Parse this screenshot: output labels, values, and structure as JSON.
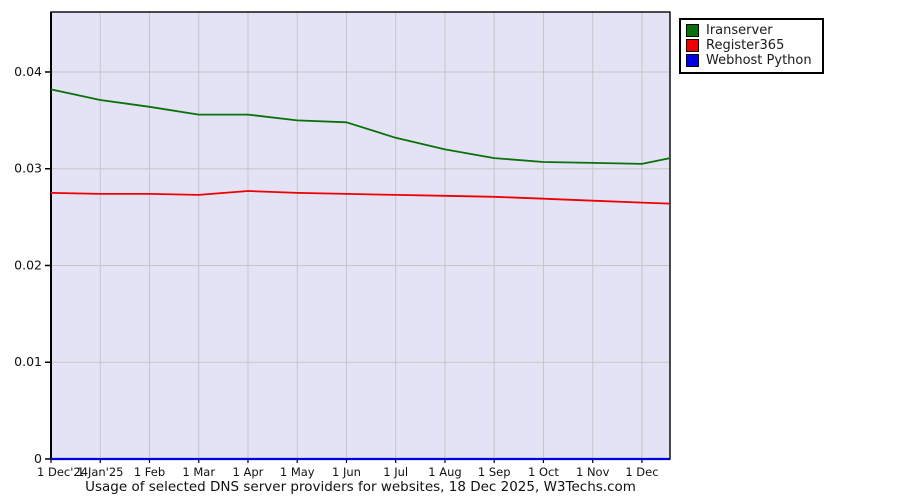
{
  "title": "Usage of selected DNS server providers for websites, 18 Dec 2025, W3Techs.com",
  "legend": {
    "items": [
      {
        "label": "Iranserver",
        "color": "#0a700a"
      },
      {
        "label": "Register365",
        "color": "#ee0000"
      },
      {
        "label": "Webhost Python",
        "color": "#0000e0"
      }
    ]
  },
  "chart_data": {
    "type": "line",
    "title": "Usage of selected DNS server providers for websites, 18 Dec 2025, W3Techs.com",
    "x": [
      0,
      1,
      2,
      3,
      4,
      5,
      6,
      7,
      8,
      9,
      10,
      11,
      12,
      12.57
    ],
    "xtick_labels": [
      "1 Dec'24",
      "1 Jan'25",
      "1 Feb",
      "1 Mar",
      "1 Apr",
      "1 May",
      "1 Jun",
      "1 Jul",
      "1 Aug",
      "1 Sep",
      "1 Oct",
      "1 Nov",
      "1 Dec"
    ],
    "series": [
      {
        "name": "Iranserver",
        "color": "#0a700a",
        "width": 1.8,
        "values": [
          0.0382,
          0.0371,
          0.0364,
          0.0356,
          0.0356,
          0.035,
          0.0348,
          0.0332,
          0.032,
          0.0311,
          0.0307,
          0.0306,
          0.0305,
          0.0311
        ]
      },
      {
        "name": "Register365",
        "color": "#ee0000",
        "width": 1.8,
        "values": [
          0.0275,
          0.0274,
          0.0274,
          0.0273,
          0.0277,
          0.0275,
          0.0274,
          0.0273,
          0.0272,
          0.0271,
          0.0269,
          0.0267,
          0.0265,
          0.0264
        ]
      },
      {
        "name": "Webhost Python",
        "color": "#0000e0",
        "width": 2.2,
        "values": [
          0,
          0,
          0,
          0,
          0,
          0,
          0,
          0,
          0,
          0,
          0,
          0,
          0,
          0
        ]
      }
    ],
    "ylim": [
      0,
      0.0462
    ],
    "yticks": [
      0,
      0.01,
      0.02,
      0.03,
      0.04
    ],
    "ytick_labels": [
      "0",
      "0.01",
      "0.02",
      "0.03",
      "0.04"
    ],
    "grid": true,
    "legend_position": "top-right",
    "plot_bg": "#e3e3f5",
    "grid_color": "#c6c6c6",
    "axis_color": "#000000",
    "tick_label_color": "#111111"
  }
}
